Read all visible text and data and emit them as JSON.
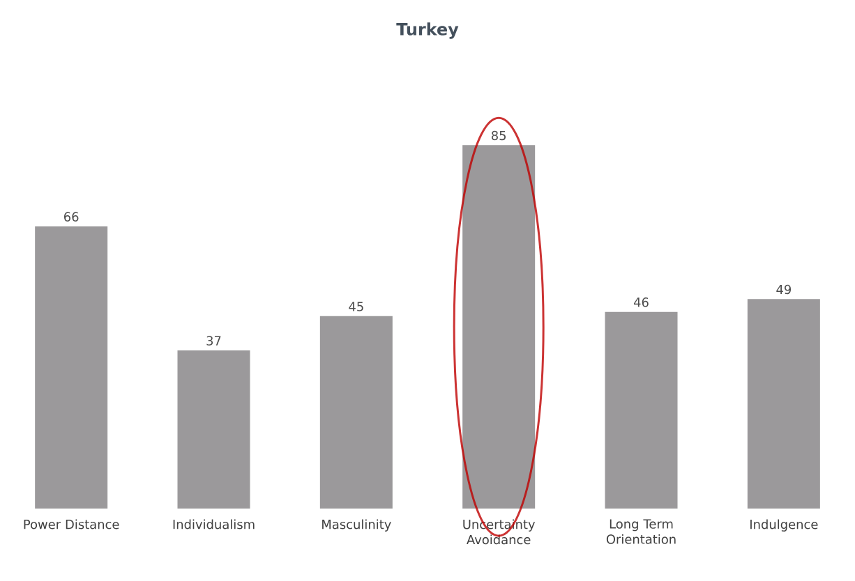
{
  "chart_data": {
    "type": "bar",
    "title": "Turkey",
    "categories": [
      "Power Distance",
      "Individualism",
      "Masculinity",
      "Uncertainty Avoidance",
      "Long Term Orientation",
      "Indulgence"
    ],
    "values": [
      66,
      37,
      45,
      85,
      46,
      49
    ],
    "color": "#9b999b",
    "data_labels": true
  }
}
